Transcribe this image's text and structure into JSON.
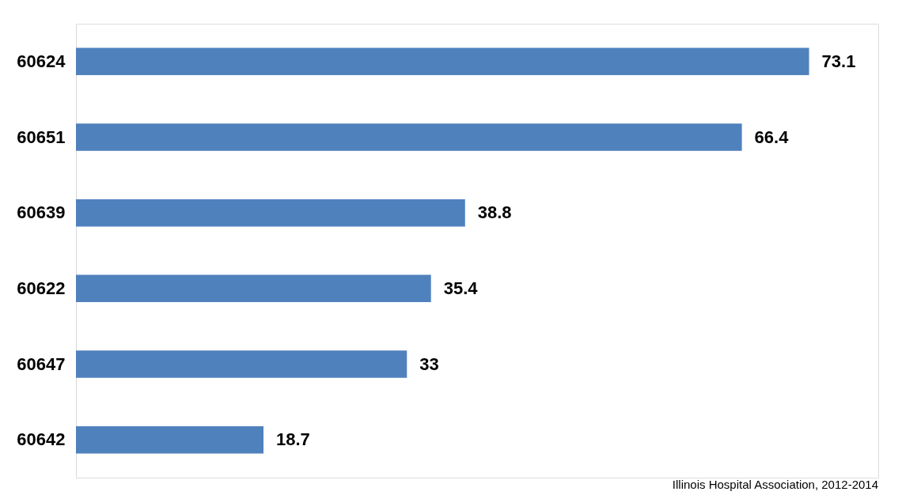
{
  "chart_data": {
    "type": "bar",
    "orientation": "horizontal",
    "categories": [
      "60624",
      "60651",
      "60639",
      "60622",
      "60647",
      "60642"
    ],
    "values": [
      73.1,
      66.4,
      38.8,
      35.4,
      33,
      18.7
    ],
    "color": "#4f81bd",
    "data_labels": true,
    "xlim": [
      0,
      80
    ],
    "grid": false,
    "annotations": [
      "Illinois Hospital Association, 2012-2014"
    ]
  }
}
